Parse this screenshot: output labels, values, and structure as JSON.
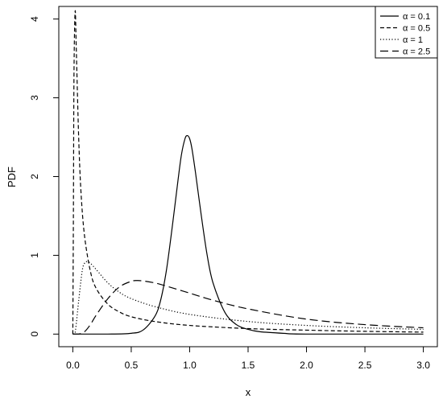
{
  "chart_data": {
    "type": "line",
    "title": "",
    "xlabel": "x",
    "ylabel": "PDF",
    "xlim": [
      -0.12,
      3.12
    ],
    "ylim": [
      -0.16,
      4.16
    ],
    "x_ticks": [
      0.0,
      0.5,
      1.0,
      1.5,
      2.0,
      2.5,
      3.0
    ],
    "x_tick_labels": [
      "0.0",
      "0.5",
      "1.0",
      "1.5",
      "2.0",
      "2.5",
      "3.0"
    ],
    "y_ticks": [
      0,
      1,
      2,
      3,
      4
    ],
    "y_tick_labels": [
      "0",
      "1",
      "2",
      "3",
      "4"
    ],
    "grid": false,
    "legend_position": "top-right",
    "series": [
      {
        "name": "α = 0.1",
        "line_style": "solid",
        "x": [
          0.0,
          0.3,
          0.5,
          0.6,
          0.7,
          0.75,
          0.8,
          0.85,
          0.9,
          0.93,
          0.96,
          0.98,
          1.0,
          1.02,
          1.05,
          1.1,
          1.15,
          1.2,
          1.3,
          1.4,
          1.5,
          1.6,
          1.8,
          2.0,
          3.0
        ],
        "y": [
          0.0,
          0.0,
          0.01,
          0.05,
          0.22,
          0.42,
          0.8,
          1.35,
          1.95,
          2.28,
          2.48,
          2.52,
          2.48,
          2.35,
          2.05,
          1.5,
          1.0,
          0.65,
          0.28,
          0.12,
          0.06,
          0.03,
          0.01,
          0.0,
          0.0
        ]
      },
      {
        "name": "α = 0.5",
        "line_style": "short-dash",
        "x": [
          0.0,
          0.005,
          0.01,
          0.02,
          0.03,
          0.05,
          0.07,
          0.1,
          0.15,
          0.2,
          0.3,
          0.4,
          0.5,
          0.7,
          1.0,
          1.5,
          2.0,
          2.5,
          3.0
        ],
        "y": [
          0.0,
          1.5,
          3.3,
          4.1,
          3.6,
          2.5,
          1.8,
          1.25,
          0.8,
          0.58,
          0.38,
          0.28,
          0.22,
          0.16,
          0.11,
          0.07,
          0.05,
          0.035,
          0.025
        ]
      },
      {
        "name": "α = 1",
        "line_style": "dotted",
        "x": [
          0.0,
          0.02,
          0.05,
          0.08,
          0.1,
          0.12,
          0.15,
          0.2,
          0.3,
          0.4,
          0.5,
          0.7,
          1.0,
          1.5,
          2.0,
          2.5,
          3.0
        ],
        "y": [
          0.0,
          0.02,
          0.42,
          0.8,
          0.9,
          0.92,
          0.9,
          0.82,
          0.65,
          0.53,
          0.45,
          0.35,
          0.25,
          0.16,
          0.11,
          0.08,
          0.06
        ]
      },
      {
        "name": "α = 2.5",
        "line_style": "long-dash",
        "x": [
          0.0,
          0.05,
          0.1,
          0.15,
          0.2,
          0.3,
          0.4,
          0.5,
          0.55,
          0.6,
          0.7,
          0.8,
          1.0,
          1.2,
          1.5,
          2.0,
          2.5,
          3.0
        ],
        "y": [
          0.0,
          0.0,
          0.03,
          0.12,
          0.24,
          0.45,
          0.6,
          0.67,
          0.68,
          0.675,
          0.65,
          0.61,
          0.52,
          0.43,
          0.32,
          0.19,
          0.12,
          0.08
        ]
      }
    ]
  }
}
